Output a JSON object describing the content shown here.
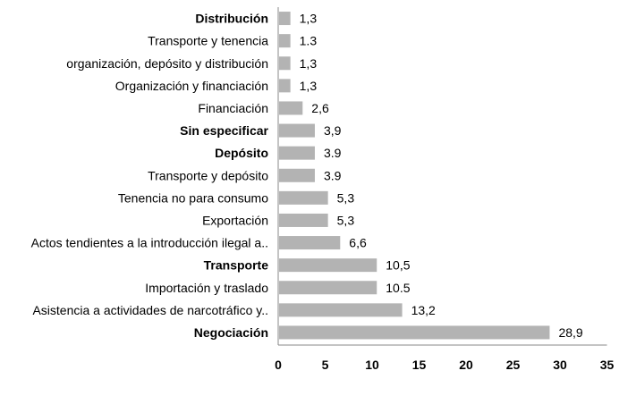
{
  "chart_data": {
    "type": "bar",
    "orientation": "horizontal",
    "title": "",
    "xlabel": "",
    "ylabel": "",
    "categories": [
      "Distribución",
      "Transporte y tenencia",
      "organización, depósito y distribución",
      "Organización y financiación",
      "Financiación",
      "Sin especificar",
      "Depósito",
      "Transporte y depósito",
      "Tenencia no para consumo",
      "Exportación",
      "Actos tendientes a la introducción ilegal a..",
      "Transporte",
      "Importación y traslado",
      "Asistencia a actividades de narcotráfico y..",
      "Negociación"
    ],
    "value_labels": [
      "1,3",
      "1.3",
      "1,3",
      "1,3",
      "2,6",
      "3,9",
      "3.9",
      "3.9",
      "5,3",
      "5,3",
      "6,6",
      "10,5",
      "10.5",
      "13,2",
      "28,9"
    ],
    "values": [
      1.3,
      1.3,
      1.3,
      1.3,
      2.6,
      3.9,
      3.9,
      3.9,
      5.3,
      5.3,
      6.6,
      10.5,
      10.5,
      13.2,
      28.9
    ],
    "bold_categories": [
      "Distribución",
      "Sin especificar",
      "Depósito",
      "Transporte",
      "Negociación"
    ],
    "xlim": [
      0,
      35
    ],
    "xticks": [
      "0",
      "5",
      "10",
      "15",
      "20",
      "25",
      "30",
      "35"
    ],
    "bar_color": "#b3b3b3",
    "grid": false,
    "legend": "none"
  }
}
